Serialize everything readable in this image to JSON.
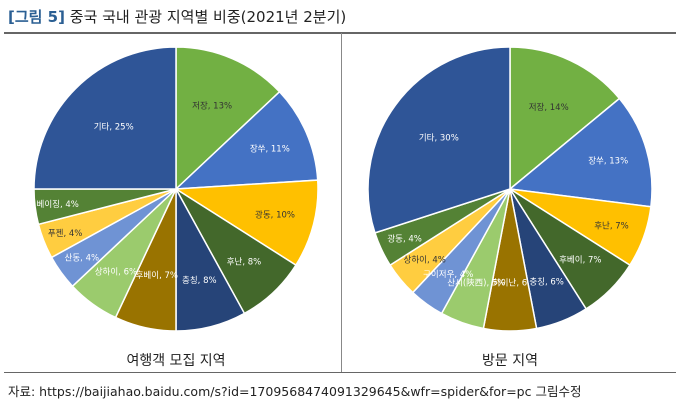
{
  "figure": {
    "tag": "[그림 5]",
    "title": "중국 국내 관광 지역별 비중(2021년 2분기)"
  },
  "source_note": "자료: https://baijiahao.baidu.com/s?id=1709568474091329645&wfr=spider&for=pc 그림수정",
  "chart_data": [
    {
      "type": "pie",
      "caption": "여행객 모집 지역",
      "start_angle_deg": 0,
      "direction": "clockwise",
      "slices": [
        {
          "name": "저장",
          "value": 13,
          "label": "저장, 13%",
          "color": "#72b043"
        },
        {
          "name": "장쑤",
          "value": 11,
          "label": "장쑤, 11%",
          "color": "#4472c4"
        },
        {
          "name": "광동",
          "value": 10,
          "label": "광동, 10%",
          "color": "#ffc000"
        },
        {
          "name": "후난",
          "value": 8,
          "label": "후난, 8%",
          "color": "#43682b"
        },
        {
          "name": "충칭",
          "value": 8,
          "label": "충칭, 8%",
          "color": "#264478"
        },
        {
          "name": "후베이",
          "value": 7,
          "label": "후베이, 7%",
          "color": "#997300"
        },
        {
          "name": "상하이",
          "value": 6,
          "label": "상하이, 6%",
          "color": "#9bcb6d"
        },
        {
          "name": "산동",
          "value": 4,
          "label": "산동, 4%",
          "color": "#6f93d4"
        },
        {
          "name": "푸젠",
          "value": 4,
          "label": "푸젠, 4%",
          "color": "#ffcd40"
        },
        {
          "name": "베이징",
          "value": 4,
          "label": "베이징, 4%",
          "color": "#548235"
        },
        {
          "name": "기타",
          "value": 25,
          "label": "기타, 25%",
          "color": "#2f5597"
        }
      ]
    },
    {
      "type": "pie",
      "caption": "방문 지역",
      "start_angle_deg": 0,
      "direction": "clockwise",
      "slices": [
        {
          "name": "저장",
          "value": 14,
          "label": "저장, 14%",
          "color": "#72b043"
        },
        {
          "name": "장쑤",
          "value": 13,
          "label": "장쑤, 13%",
          "color": "#4472c4"
        },
        {
          "name": "후난",
          "value": 7,
          "label": "후난, 7%",
          "color": "#ffc000"
        },
        {
          "name": "후베이",
          "value": 7,
          "label": "후베이, 7%",
          "color": "#43682b"
        },
        {
          "name": "충칭",
          "value": 6,
          "label": "충칭, 6%",
          "color": "#264478"
        },
        {
          "name": "하이난",
          "value": 6,
          "label": "하이난, 6",
          "color": "#997300"
        },
        {
          "name": "산시(陝西)",
          "value": 5,
          "label": "산시(陝西), 5%",
          "color": "#9bcb6d"
        },
        {
          "name": "구이저우",
          "value": 4,
          "label": "구이저우, 4%",
          "color": "#6f93d4"
        },
        {
          "name": "상하이",
          "value": 4,
          "label": "상하이, 4%",
          "color": "#ffcd40"
        },
        {
          "name": "광동",
          "value": 4,
          "label": "광동, 4%",
          "color": "#548235"
        },
        {
          "name": "기타",
          "value": 30,
          "label": "기타, 30%",
          "color": "#2f5597"
        }
      ]
    }
  ]
}
